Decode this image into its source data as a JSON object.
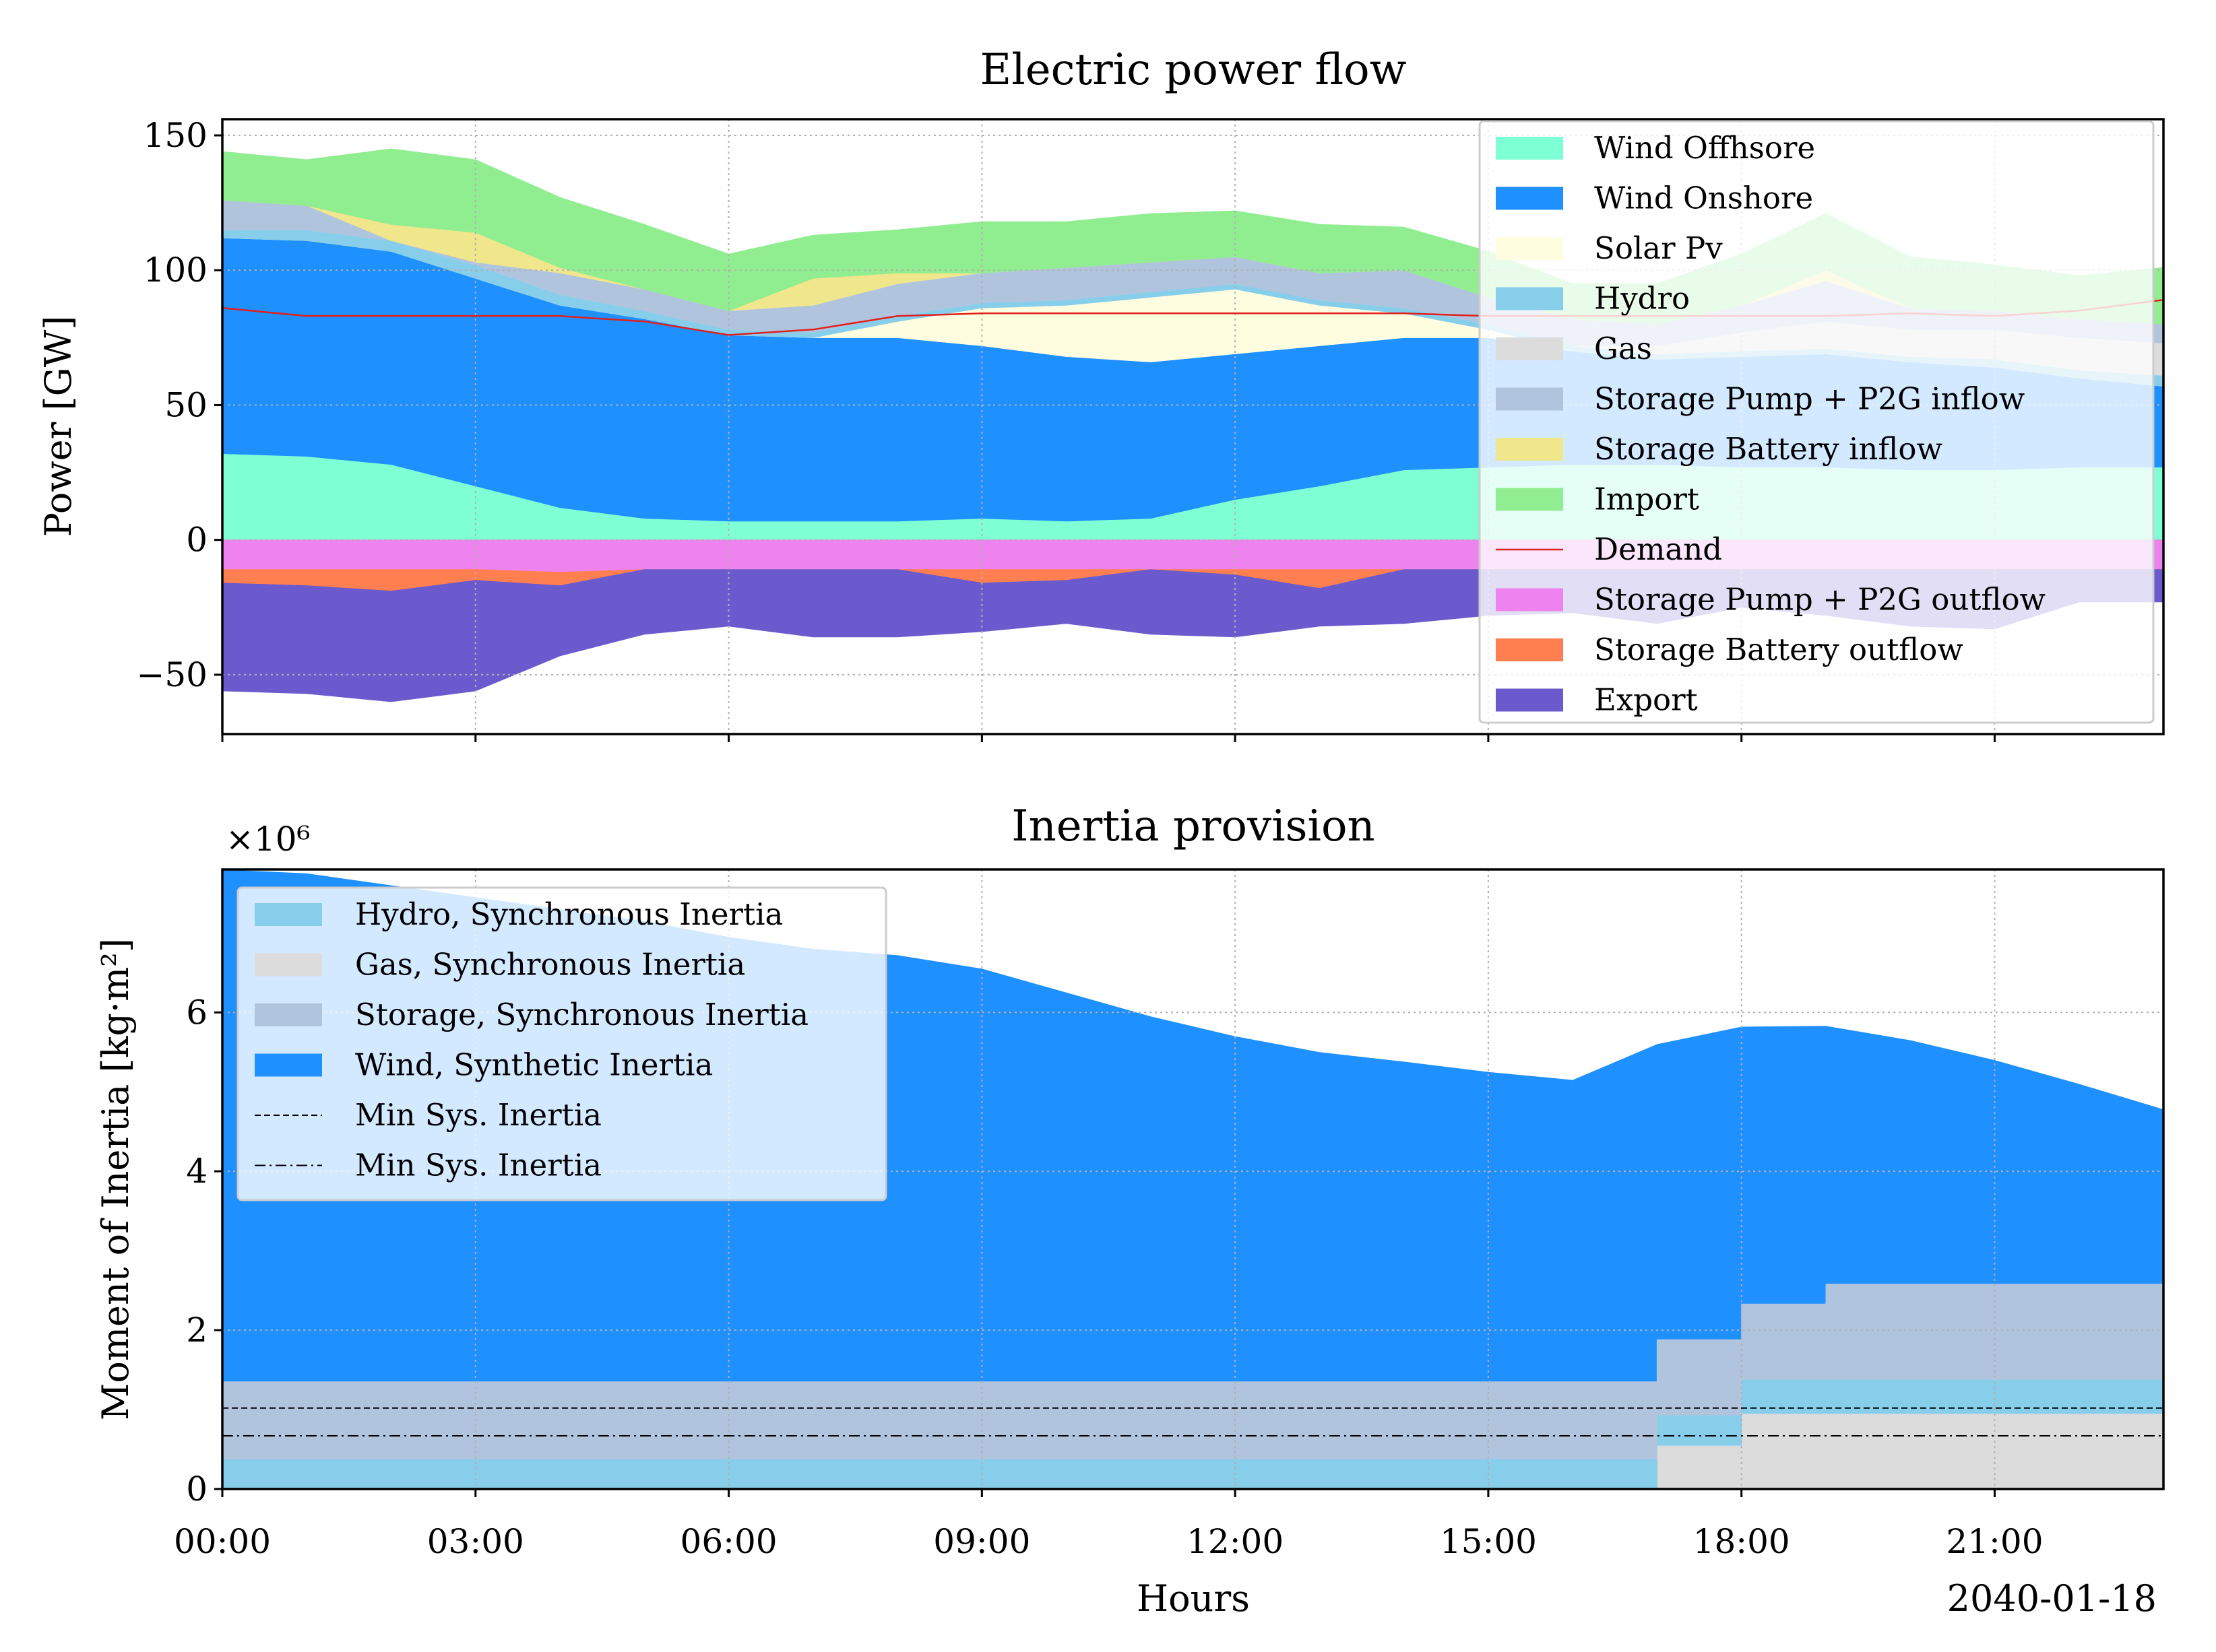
{
  "colors": {
    "wind_offshore": "#7fffd4",
    "wind_onshore": "#1e90ff",
    "solar_pv": "#fffde0",
    "hydro": "#87ceeb",
    "gas": "#dcdcdc",
    "storage_pump_in": "#b0c4de",
    "storage_battery_in": "#f0e68c",
    "import": "#90ee90",
    "demand": "#e0201c",
    "storage_pump_out": "#ee82ee",
    "storage_battery_out": "#ff7f50",
    "export": "#6a5acd",
    "inertia_hydro": "#87ceeb",
    "inertia_gas": "#dcdcdc",
    "inertia_storage": "#b0c4de",
    "inertia_wind": "#1e90ff"
  },
  "chart_data": [
    {
      "type": "area",
      "title": "Electric power flow",
      "ylabel": "Power [GW]",
      "xlabel": "",
      "ylim": [
        -72,
        156
      ],
      "yticks": [
        150,
        100,
        50,
        0,
        -50
      ],
      "ytick_labels": [
        "150",
        "100",
        "50",
        "0",
        "−50"
      ],
      "x_hours": [
        0,
        1,
        2,
        3,
        4,
        5,
        6,
        7,
        8,
        9,
        10,
        11,
        12,
        13,
        14,
        15,
        16,
        17,
        18,
        19,
        20,
        21,
        22,
        23
      ],
      "grid": true,
      "legend_position": "upper-right",
      "series_positive": [
        {
          "name": "Wind Offhsore",
          "key": "wind_offshore",
          "values": [
            32,
            31,
            28,
            20,
            12,
            8,
            7,
            7,
            7,
            8,
            7,
            8,
            15,
            20,
            26,
            27,
            28,
            28,
            27,
            27,
            26,
            26,
            27,
            27
          ]
        },
        {
          "name": "Wind Onshore",
          "key": "wind_onshore",
          "values": [
            80,
            80,
            79,
            77,
            75,
            74,
            69,
            68,
            68,
            64,
            61,
            58,
            54,
            52,
            49,
            48,
            42,
            39,
            41,
            42,
            40,
            38,
            33,
            30
          ]
        },
        {
          "name": "Solar Pv",
          "key": "solar_pv",
          "values": [
            0,
            0,
            0,
            0,
            0,
            0,
            0,
            0,
            6,
            14,
            19,
            24,
            24,
            15,
            9,
            3,
            0,
            0,
            0,
            0,
            0,
            0,
            0,
            0
          ]
        },
        {
          "name": "Hydro",
          "key": "hydro",
          "values": [
            3,
            4,
            4,
            5,
            4,
            3,
            2,
            2,
            2,
            2,
            2,
            2,
            2,
            2,
            2,
            2,
            2,
            2,
            2,
            2,
            2,
            3,
            3,
            4
          ]
        },
        {
          "name": "Gas",
          "key": "gas",
          "values": [
            0,
            0,
            0,
            0,
            0,
            0,
            0,
            0,
            0,
            0,
            0,
            0,
            0,
            0,
            0,
            0,
            0,
            3,
            7,
            10,
            10,
            11,
            12,
            12
          ]
        },
        {
          "name": "Storage Pump + P2G inflow",
          "key": "storage_pump_in",
          "values": [
            11,
            9,
            0,
            1,
            8,
            8,
            7,
            10,
            12,
            11,
            12,
            11,
            10,
            10,
            14,
            10,
            10,
            8,
            10,
            15,
            8,
            7,
            7,
            7
          ]
        },
        {
          "name": "Storage Battery inflow",
          "key": "storage_battery_in",
          "values": [
            0,
            0,
            6,
            11,
            2,
            0,
            0,
            10,
            4,
            0,
            0,
            0,
            0,
            0,
            0,
            0,
            0,
            0,
            0,
            4,
            0,
            0,
            0,
            0
          ]
        },
        {
          "name": "Import",
          "key": "import",
          "values": [
            18,
            17,
            28,
            27,
            26,
            24,
            21,
            16,
            16,
            19,
            17,
            18,
            17,
            18,
            16,
            17,
            13,
            15,
            19,
            21,
            19,
            17,
            16,
            21
          ]
        }
      ],
      "series_negative": [
        {
          "name": "Storage Pump + P2G outflow",
          "key": "storage_pump_out",
          "values": [
            -11,
            -11,
            -11,
            -11,
            -12,
            -11,
            -11,
            -11,
            -11,
            -11,
            -11,
            -11,
            -11,
            -11,
            -11,
            -11,
            -11,
            -11,
            -11,
            -11,
            -11,
            -11,
            -11,
            -11
          ]
        },
        {
          "name": "Storage Battery outflow",
          "key": "storage_battery_out",
          "values": [
            -5,
            -6,
            -8,
            -4,
            -5,
            0,
            0,
            0,
            0,
            -5,
            -4,
            0,
            -2,
            -7,
            0,
            0,
            0,
            0,
            0,
            0,
            0,
            0,
            0,
            0
          ]
        },
        {
          "name": "Export",
          "key": "export",
          "values": [
            -40,
            -40,
            -41,
            -41,
            -26,
            -24,
            -21,
            -25,
            -25,
            -18,
            -16,
            -24,
            -23,
            -14,
            -20,
            -17,
            -16,
            -20,
            -14,
            -17,
            -21,
            -22,
            -12,
            -12
          ]
        }
      ],
      "demand": {
        "name": "Demand",
        "key": "demand",
        "values": [
          86,
          83,
          83,
          83,
          83,
          81,
          76,
          78,
          83,
          84,
          84,
          84,
          84,
          84,
          84,
          83,
          83,
          83,
          83,
          83,
          84,
          83,
          85,
          89
        ]
      },
      "legend": [
        {
          "label": "Wind Offhsore",
          "key": "wind_offshore",
          "kind": "patch"
        },
        {
          "label": "Wind Onshore",
          "key": "wind_onshore",
          "kind": "patch"
        },
        {
          "label": "Solar Pv",
          "key": "solar_pv",
          "kind": "patch"
        },
        {
          "label": "Hydro",
          "key": "hydro",
          "kind": "patch"
        },
        {
          "label": "Gas",
          "key": "gas",
          "kind": "patch"
        },
        {
          "label": "Storage Pump + P2G inflow",
          "key": "storage_pump_in",
          "kind": "patch"
        },
        {
          "label": "Storage Battery inflow",
          "key": "storage_battery_in",
          "kind": "patch"
        },
        {
          "label": "Import",
          "key": "import",
          "kind": "patch"
        },
        {
          "label": "Demand",
          "key": "demand",
          "kind": "line"
        },
        {
          "label": "Storage Pump + P2G outflow",
          "key": "storage_pump_out",
          "kind": "patch"
        },
        {
          "label": "Storage Battery outflow",
          "key": "storage_battery_out",
          "kind": "patch"
        },
        {
          "label": "Export",
          "key": "export",
          "kind": "patch"
        }
      ]
    },
    {
      "type": "area",
      "title": "Inertia provision",
      "ylabel": "Moment of Inertia [kg·m²]",
      "xlabel": "Hours",
      "offset_label": "×10⁶",
      "ylim": [
        0,
        7.8
      ],
      "yticks": [
        0,
        2,
        4,
        6
      ],
      "ytick_labels": [
        "0",
        "2",
        "4",
        "6"
      ],
      "x_hours": [
        0,
        1,
        2,
        3,
        4,
        5,
        6,
        7,
        8,
        9,
        10,
        11,
        12,
        13,
        14,
        15,
        16,
        17,
        18,
        19,
        20,
        21,
        22,
        23
      ],
      "xticks": [
        0,
        3,
        6,
        9,
        12,
        15,
        18,
        21
      ],
      "xtick_labels": [
        "00:00",
        "03:00",
        "06:00",
        "09:00",
        "12:00",
        "15:00",
        "18:00",
        "21:00"
      ],
      "date_label": "2040-01-18",
      "grid": true,
      "legend_position": "upper-left",
      "step_series": [
        {
          "name": "Gas, Synchronous Inertia",
          "key": "inertia_gas",
          "values": [
            0,
            0,
            0,
            0,
            0,
            0,
            0,
            0,
            0,
            0,
            0,
            0,
            0,
            0,
            0,
            0,
            0,
            0.55,
            0.95,
            0.95,
            0.95,
            0.95,
            0.95,
            0.95
          ]
        },
        {
          "name": "Hydro, Synchronous Inertia",
          "key": "inertia_hydro",
          "values": [
            0.38,
            0.38,
            0.38,
            0.38,
            0.38,
            0.38,
            0.38,
            0.38,
            0.38,
            0.38,
            0.38,
            0.38,
            0.38,
            0.38,
            0.38,
            0.38,
            0.38,
            0.38,
            0.43,
            0.43,
            0.43,
            0.43,
            0.43,
            0.43
          ]
        },
        {
          "name": "Storage, Synchronous Inertia",
          "key": "inertia_storage",
          "values": [
            0.97,
            0.97,
            0.97,
            0.97,
            0.97,
            0.97,
            0.97,
            0.97,
            0.97,
            0.97,
            0.97,
            0.97,
            0.97,
            0.97,
            0.97,
            0.97,
            0.97,
            0.95,
            0.95,
            1.2,
            1.2,
            1.2,
            1.2,
            1.2
          ]
        }
      ],
      "wind_total": {
        "name": "Wind, Synthetic Inertia",
        "key": "inertia_wind",
        "values": [
          7.8,
          7.75,
          7.6,
          7.45,
          7.3,
          7.15,
          6.95,
          6.8,
          6.72,
          6.55,
          6.25,
          5.95,
          5.7,
          5.5,
          5.38,
          5.25,
          5.15,
          5.6,
          5.82,
          5.83,
          5.65,
          5.4,
          5.1,
          4.78
        ]
      },
      "min_lines": [
        {
          "name": "Min Sys. Inertia",
          "value": 1.02,
          "style": "dashed"
        },
        {
          "name": "Min Sys. Inertia",
          "value": 0.67,
          "style": "dashdot"
        }
      ],
      "legend": [
        {
          "label": "Hydro, Synchronous Inertia",
          "key": "inertia_hydro",
          "kind": "patch"
        },
        {
          "label": "Gas, Synchronous Inertia",
          "key": "inertia_gas",
          "kind": "patch"
        },
        {
          "label": "Storage, Synchronous Inertia",
          "key": "inertia_storage",
          "kind": "patch"
        },
        {
          "label": "Wind, Synthetic Inertia",
          "key": "inertia_wind",
          "kind": "patch"
        },
        {
          "label": "Min Sys. Inertia",
          "key": "",
          "kind": "dashed"
        },
        {
          "label": "Min Sys. Inertia",
          "key": "",
          "kind": "dashdot"
        }
      ]
    }
  ]
}
